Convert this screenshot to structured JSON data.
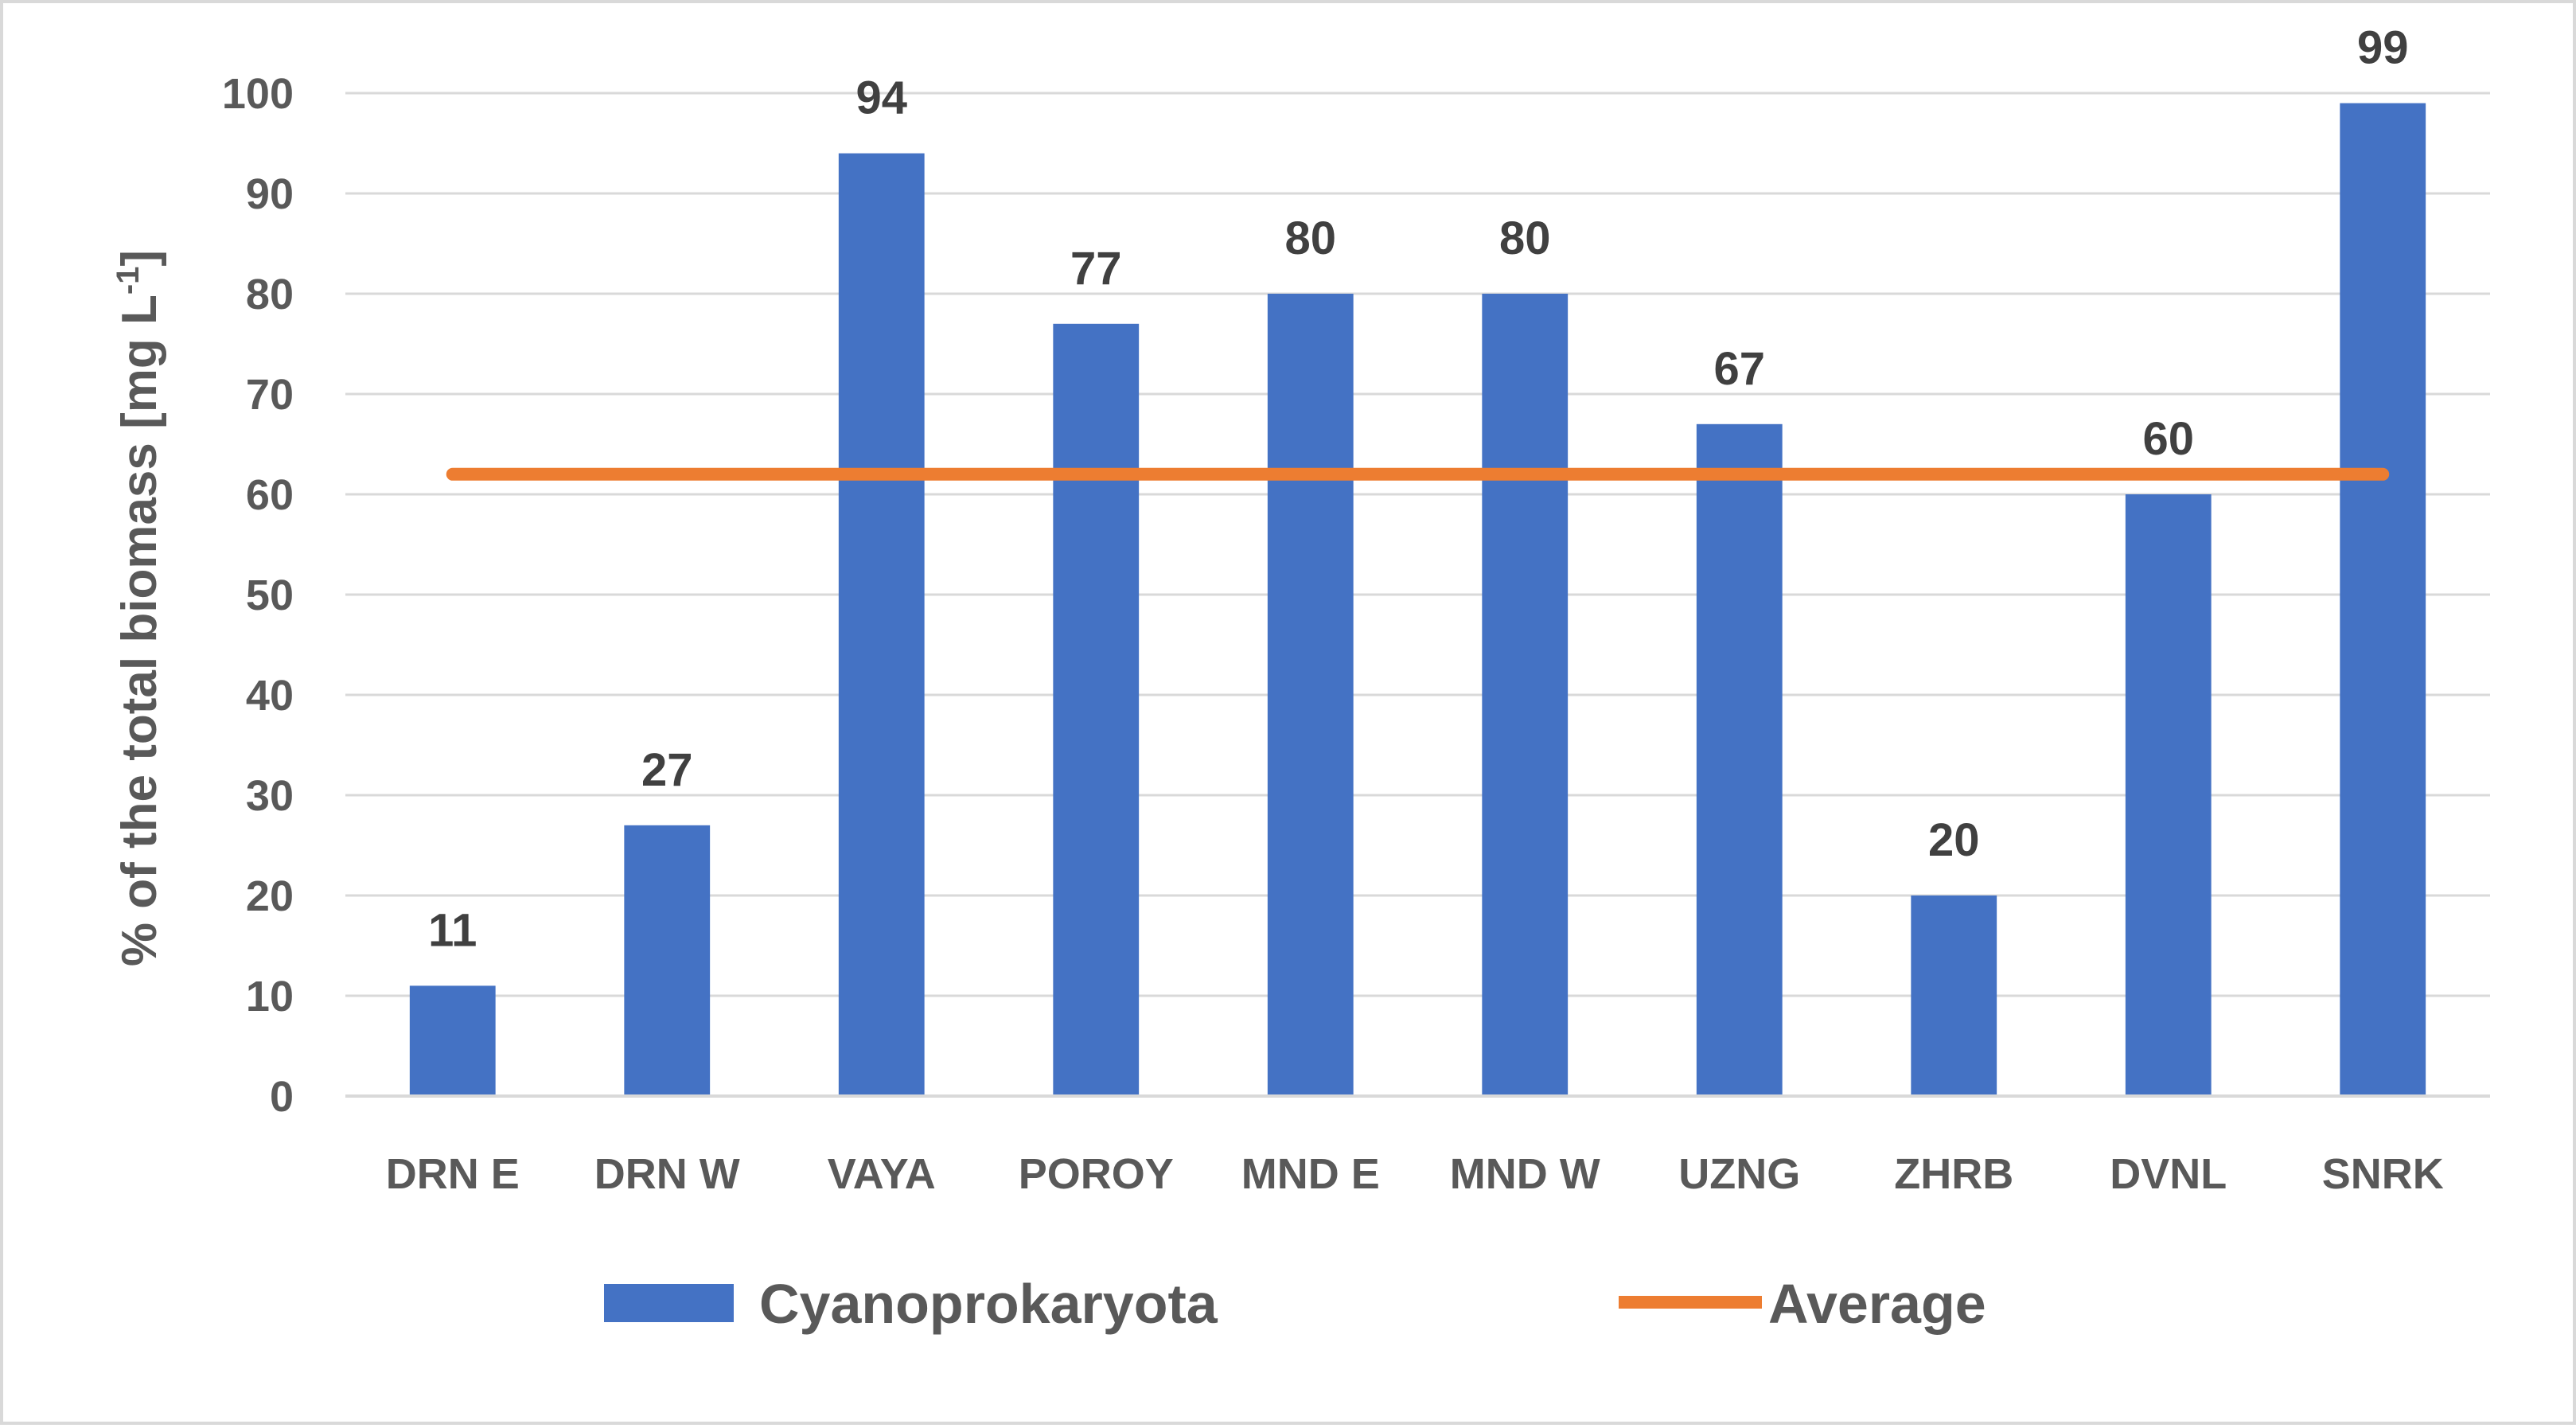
{
  "chart_data": {
    "type": "bar",
    "title": "",
    "xlabel": "",
    "ylabel": "% of the total biomass [mg L",
    "ylabel_superscript": "-1",
    "ylabel_suffix": "]",
    "ylim": [
      0,
      100
    ],
    "ytick_step": 10,
    "grid": true,
    "categories": [
      "DRN E",
      "DRN W",
      "VAYA",
      "POROY",
      "MND E",
      "MND W",
      "UZNG",
      "ZHRB",
      "DVNL",
      "SNRK"
    ],
    "series": [
      {
        "name": "Cyanoprokaryota",
        "type": "bar",
        "color": "#4472c4",
        "values": [
          11,
          27,
          94,
          77,
          80,
          80,
          67,
          20,
          60,
          99
        ]
      },
      {
        "name": "Average",
        "type": "line",
        "color": "#ed7d31",
        "values": [
          62,
          62,
          62,
          62,
          62,
          62,
          62,
          62,
          62,
          62
        ]
      }
    ],
    "legend": {
      "position": "bottom",
      "entries": [
        "Cyanoprokaryota",
        "Average"
      ]
    }
  }
}
